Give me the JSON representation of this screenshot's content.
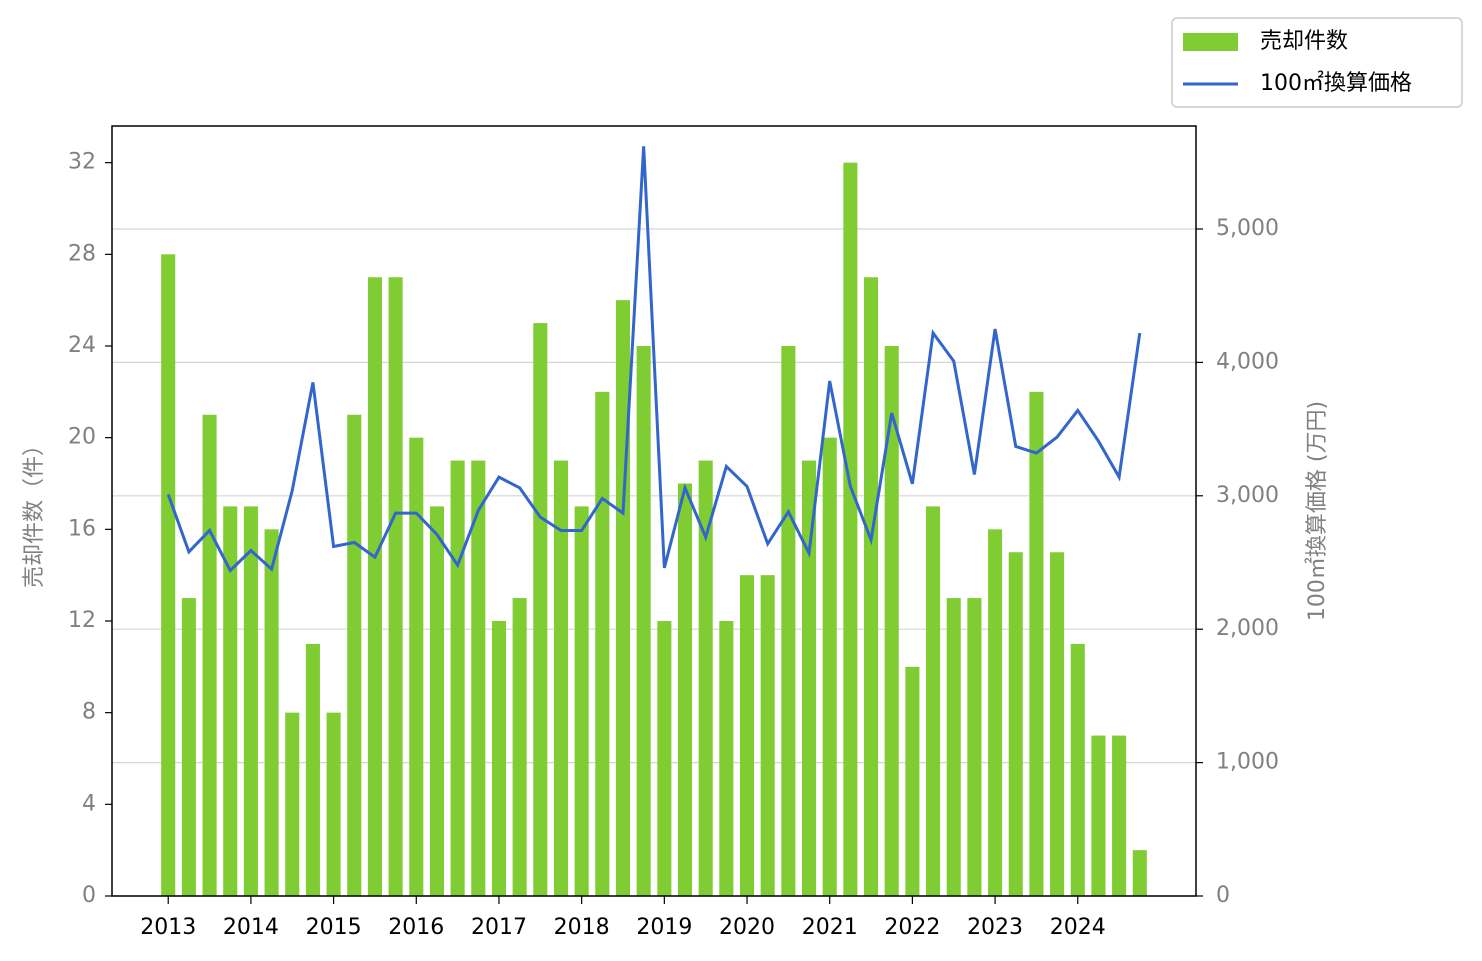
{
  "chart_data": {
    "type": "bar_line",
    "y_label": "売却件数（件）",
    "y2_label": "100㎡換算価格 (万円)",
    "x": [
      2013,
      2013.25,
      2013.5,
      2013.75,
      2014,
      2014.25,
      2014.5,
      2014.75,
      2015,
      2015.25,
      2015.5,
      2015.75,
      2016,
      2016.25,
      2016.5,
      2016.75,
      2017,
      2017.25,
      2017.5,
      2017.75,
      2018,
      2018.25,
      2018.5,
      2018.75,
      2019,
      2019.25,
      2019.5,
      2019.75,
      2020,
      2020.25,
      2020.5,
      2020.75,
      2021,
      2021.25,
      2021.5,
      2021.75,
      2022,
      2022.25,
      2022.5,
      2022.75,
      2023,
      2023.25,
      2023.5,
      2023.75,
      2024,
      2024.25,
      2024.5,
      2024.75
    ],
    "series": [
      {
        "name": "売却件数",
        "kind": "bar",
        "color": "#7fcc33",
        "values": [
          28,
          13,
          21,
          17,
          17,
          16,
          8,
          11,
          8,
          21,
          27,
          27,
          20,
          17,
          19,
          19,
          12,
          13,
          25,
          19,
          17,
          22,
          26,
          24,
          12,
          18,
          19,
          12,
          14,
          14,
          24,
          19,
          20,
          32,
          27,
          24,
          10,
          17,
          13,
          13,
          16,
          15,
          22,
          15,
          11,
          7,
          7,
          2
        ]
      },
      {
        "name": "100㎡換算価格",
        "kind": "line",
        "axis": "y2",
        "color": "#3366cc",
        "values": [
          3010,
          2580,
          2740,
          2440,
          2590,
          2450,
          3040,
          3850,
          2620,
          2650,
          2540,
          2870,
          2870,
          2710,
          2480,
          2890,
          3140,
          3060,
          2840,
          2740,
          2740,
          2980,
          2870,
          5620,
          2460,
          3060,
          2690,
          3220,
          3070,
          2640,
          2880,
          2570,
          3860,
          3070,
          2670,
          3620,
          3090,
          4220,
          4010,
          3160,
          4250,
          3370,
          3320,
          3440,
          3640,
          3410,
          3140,
          4220
        ]
      }
    ],
    "xlim": [
      2012.32,
      2025.43
    ],
    "xticks": [
      2013,
      2014,
      2015,
      2016,
      2017,
      2018,
      2019,
      2020,
      2021,
      2022,
      2023,
      2024
    ],
    "ylim": [
      0,
      33.6
    ],
    "yticks": [
      0,
      4,
      8,
      12,
      16,
      20,
      24,
      28,
      32
    ],
    "y2lim": [
      0,
      5772
    ],
    "y2ticks": [
      0,
      {
        "value": 1000,
        "label": "1,000"
      },
      {
        "value": 2000,
        "label": "2,000"
      },
      {
        "value": 3000,
        "label": "3,000"
      },
      {
        "value": 4000,
        "label": "4,000"
      },
      {
        "value": 5000,
        "label": "5,000"
      }
    ],
    "grid": "y2",
    "legend": "upper right outside"
  }
}
